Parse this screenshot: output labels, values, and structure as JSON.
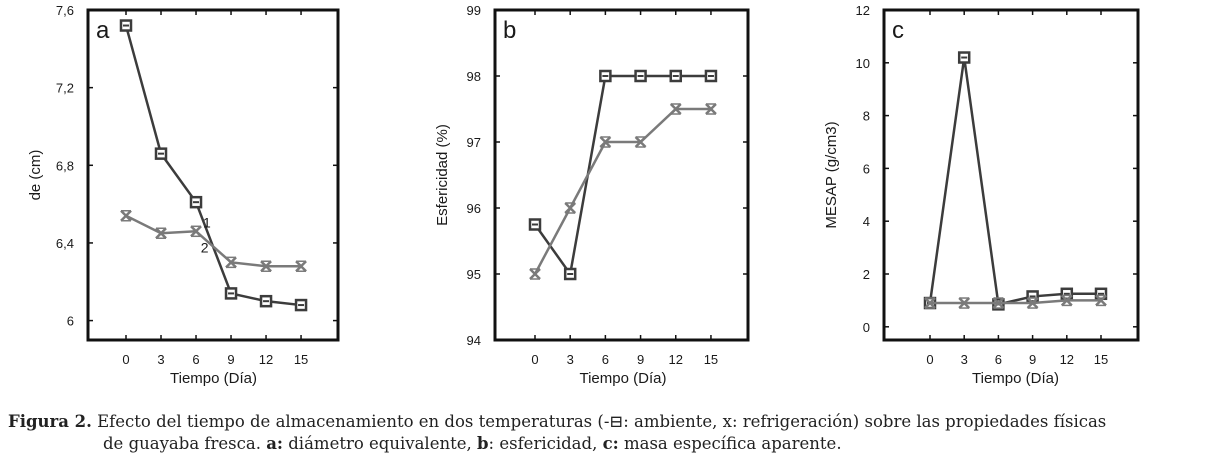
{
  "chart_data": [
    {
      "type": "line",
      "panel_letter": "a",
      "xlabel": "Tiempo (Día)",
      "ylabel": "de (cm)",
      "x": [
        0,
        3,
        6,
        9,
        12,
        15
      ],
      "xticks": [
        "0",
        "3",
        "6",
        "9",
        "12",
        "15"
      ],
      "ylim": [
        5.9,
        7.6
      ],
      "yticks": [
        "6",
        "6,4",
        "6,8",
        "7,2",
        "7,6"
      ],
      "ytick_values": [
        6.0,
        6.4,
        6.8,
        7.2,
        7.6
      ],
      "series": [
        {
          "marker": "square",
          "color": "#3c3c3c",
          "values": [
            7.52,
            6.86,
            6.61,
            6.14,
            6.1,
            6.08
          ]
        },
        {
          "marker": "x",
          "color": "#7a7a7a",
          "values": [
            6.54,
            6.45,
            6.46,
            6.3,
            6.28,
            6.28
          ]
        }
      ],
      "annotations": [
        {
          "text": "1",
          "x": 6.6,
          "y": 6.48
        },
        {
          "text": "2",
          "x": 6.4,
          "y": 6.35
        }
      ],
      "grid": false
    },
    {
      "type": "line",
      "panel_letter": "b",
      "xlabel": "Tiempo (Día)",
      "ylabel": "Esfericidad (%)",
      "x": [
        0,
        3,
        6,
        9,
        12,
        15
      ],
      "xticks": [
        "0",
        "3",
        "6",
        "9",
        "12",
        "15"
      ],
      "ylim": [
        94,
        99
      ],
      "yticks": [
        "94",
        "95",
        "96",
        "97",
        "98",
        "99"
      ],
      "ytick_values": [
        94,
        95,
        96,
        97,
        98,
        99
      ],
      "series": [
        {
          "marker": "square",
          "color": "#3c3c3c",
          "values": [
            95.75,
            95.0,
            98.0,
            98.0,
            98.0,
            98.0
          ]
        },
        {
          "marker": "x",
          "color": "#7a7a7a",
          "values": [
            95.0,
            96.0,
            97.0,
            97.0,
            97.5,
            97.5
          ]
        }
      ],
      "annotations": [],
      "grid": false
    },
    {
      "type": "line",
      "panel_letter": "c",
      "xlabel": "Tiempo (Día)",
      "ylabel": "MESAP (g/cm3)",
      "x": [
        0,
        3,
        6,
        9,
        12,
        15
      ],
      "xticks": [
        "0",
        "3",
        "6",
        "9",
        "12",
        "15"
      ],
      "ylim": [
        -0.5,
        12
      ],
      "yticks": [
        "0",
        "2",
        "4",
        "6",
        "8",
        "10",
        "12"
      ],
      "ytick_values": [
        0,
        2,
        4,
        6,
        8,
        10,
        12
      ],
      "series": [
        {
          "marker": "square",
          "color": "#3c3c3c",
          "values": [
            0.9,
            10.2,
            0.85,
            1.15,
            1.25,
            1.25
          ]
        },
        {
          "marker": "x",
          "color": "#7a7a7a",
          "values": [
            0.9,
            0.9,
            0.9,
            0.9,
            1.0,
            1.0
          ]
        }
      ],
      "annotations": [],
      "grid": false
    }
  ],
  "caption": {
    "label": "Figura 2.",
    "line1_text": " Efecto del tiempo de almacenamiento en dos temperaturas (",
    "line1_symbol": "-⊟",
    "line1_rest": ": ambiente, x: refrigeración) sobre las propiedades físicas",
    "line2_pre": "de guayaba fresca. ",
    "a_label": "a:",
    "a_text": " diámetro equivalente, ",
    "b_label": "b",
    "b_text": ": esfericidad, ",
    "c_label": "c:",
    "c_text": " masa específica aparente."
  }
}
